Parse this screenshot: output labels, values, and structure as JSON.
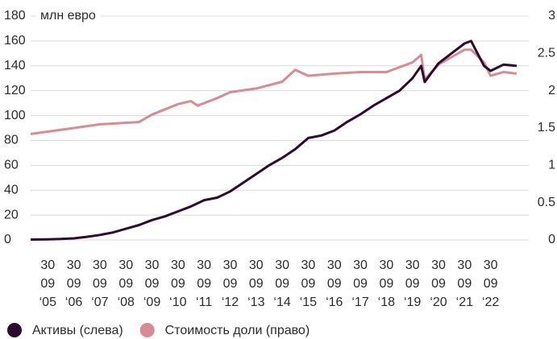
{
  "chart_data": {
    "type": "line",
    "annotation": "млн евро",
    "xlim": [
      "2005-02-01",
      "2023-10-01"
    ],
    "xticks": [
      {
        "value": "2005-09-30",
        "label": "30 09 ‘05"
      },
      {
        "value": "2006-09-30",
        "label": "30 09 ‘06"
      },
      {
        "value": "2007-09-30",
        "label": "30 09 ‘07"
      },
      {
        "value": "2008-09-30",
        "label": "30 09 ‘08"
      },
      {
        "value": "2009-09-30",
        "label": "30 09 ‘09"
      },
      {
        "value": "2010-09-30",
        "label": "30 09 ‘10"
      },
      {
        "value": "2011-09-30",
        "label": "30 09 ‘11"
      },
      {
        "value": "2012-09-30",
        "label": "30 09 ‘12"
      },
      {
        "value": "2013-09-30",
        "label": "30 09 ‘13"
      },
      {
        "value": "2014-09-30",
        "label": "30 09 ‘14"
      },
      {
        "value": "2015-09-30",
        "label": "30 09 ‘15"
      },
      {
        "value": "2016-09-30",
        "label": "30 09 ‘16"
      },
      {
        "value": "2017-09-30",
        "label": "30 09 ‘17"
      },
      {
        "value": "2018-09-30",
        "label": "30 09 ‘18"
      },
      {
        "value": "2019-09-30",
        "label": "30 09 ‘19"
      },
      {
        "value": "2020-09-30",
        "label": "30 09 ‘20"
      },
      {
        "value": "2021-09-30",
        "label": "30 09 ‘21"
      },
      {
        "value": "2022-09-30",
        "label": "30 09 ‘22"
      }
    ],
    "ylim": [
      0,
      180
    ],
    "yticks": [
      0,
      20,
      40,
      60,
      80,
      100,
      120,
      140,
      160,
      180
    ],
    "y2lim": [
      0,
      3
    ],
    "y2ticks": [
      0,
      0.5,
      1,
      1.5,
      2,
      2.5,
      3
    ],
    "grid": true,
    "series": [
      {
        "name": "Активы (слева)",
        "color": "#2d0a2e",
        "x": [
          "2005-02-01",
          "2005-09-30",
          "2006-03-31",
          "2006-09-30",
          "2007-03-31",
          "2007-09-30",
          "2008-03-31",
          "2008-09-30",
          "2009-03-31",
          "2009-09-30",
          "2010-03-31",
          "2010-09-30",
          "2011-03-31",
          "2011-09-30",
          "2012-03-31",
          "2012-09-30",
          "2013-03-31",
          "2013-09-30",
          "2014-03-31",
          "2014-09-30",
          "2015-03-31",
          "2015-09-30",
          "2016-03-31",
          "2016-09-30",
          "2017-03-31",
          "2017-09-30",
          "2018-03-31",
          "2018-09-30",
          "2019-03-31",
          "2019-09-30",
          "2020-01-31",
          "2020-03-20",
          "2020-06-30",
          "2020-09-30",
          "2021-03-31",
          "2021-09-30",
          "2021-12-31",
          "2022-03-31",
          "2022-06-30",
          "2022-09-30",
          "2023-03-31",
          "2023-10-01"
        ],
        "values": [
          0.3,
          0.5,
          0.8,
          1.3,
          2.5,
          4,
          6,
          9,
          12,
          16,
          19,
          23,
          27,
          32,
          34,
          39,
          46,
          53,
          60,
          66,
          73,
          82,
          84,
          88,
          95,
          101,
          108,
          114,
          120,
          130,
          140,
          127,
          135,
          142,
          150,
          158,
          160,
          150,
          140,
          136,
          141,
          140
        ]
      },
      {
        "name": "Стоимость доли (право)",
        "color": "#d98b93",
        "axis": "y2",
        "x": [
          "2005-02-01",
          "2006-09-30",
          "2007-09-30",
          "2008-09-30",
          "2009-03-31",
          "2009-09-30",
          "2010-09-30",
          "2011-03-31",
          "2011-06-30",
          "2012-03-31",
          "2012-09-30",
          "2013-09-30",
          "2014-09-30",
          "2015-03-31",
          "2015-09-30",
          "2016-09-30",
          "2017-09-30",
          "2018-09-30",
          "2019-09-30",
          "2020-01-31",
          "2020-03-20",
          "2020-09-30",
          "2021-03-31",
          "2021-09-30",
          "2021-12-31",
          "2022-06-30",
          "2022-09-30",
          "2023-03-31",
          "2023-10-01"
        ],
        "values": [
          1.42,
          1.5,
          1.55,
          1.57,
          1.58,
          1.68,
          1.82,
          1.86,
          1.8,
          1.9,
          1.98,
          2.03,
          2.12,
          2.28,
          2.2,
          2.23,
          2.25,
          2.25,
          2.38,
          2.48,
          2.15,
          2.35,
          2.45,
          2.55,
          2.55,
          2.38,
          2.2,
          2.25,
          2.23
        ]
      }
    ]
  }
}
